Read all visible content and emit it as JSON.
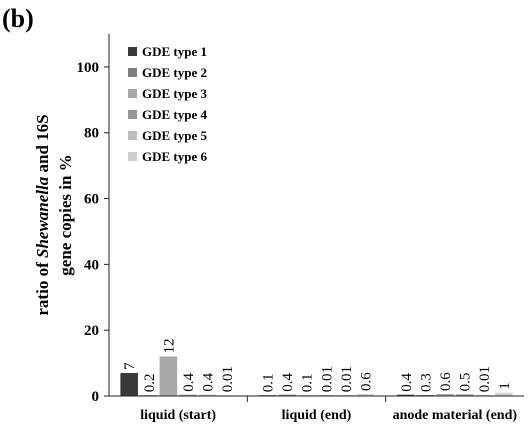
{
  "panel_label": "(b)",
  "chart_data": {
    "type": "bar",
    "ylabel_lines": [
      [
        {
          "text": "ratio of ",
          "italic": false
        },
        {
          "text": "Shewanella",
          "italic": true
        },
        {
          "text": " and 16S",
          "italic": false
        }
      ],
      [
        {
          "text": "gene copies in %",
          "italic": false
        }
      ]
    ],
    "ylim": [
      0,
      110
    ],
    "yticks": [
      0,
      20,
      40,
      60,
      80,
      100
    ],
    "categories": [
      "liquid (start)",
      "liquid (end)",
      "anode material (end)"
    ],
    "series": [
      {
        "name": "GDE type 1",
        "color": "#3a3a3a",
        "values": [
          7,
          0.1,
          0.4
        ],
        "labels": [
          "7",
          "0.1",
          "0.4"
        ]
      },
      {
        "name": "GDE type 2",
        "color": "#7e7e7e",
        "values": [
          0.2,
          0.4,
          0.3
        ],
        "labels": [
          "0.2",
          "0.4",
          "0.3"
        ]
      },
      {
        "name": "GDE type 3",
        "color": "#a9a9a9",
        "values": [
          12,
          0.1,
          0.6
        ],
        "labels": [
          "12",
          "0.1",
          "0.6"
        ]
      },
      {
        "name": "GDE type 4",
        "color": "#969696",
        "values": [
          0.4,
          0.01,
          0.5
        ],
        "labels": [
          "0.4",
          "0.01",
          "0.5"
        ]
      },
      {
        "name": "GDE type 5",
        "color": "#bdbdbd",
        "values": [
          0.4,
          0.01,
          0.01
        ],
        "labels": [
          "0.4",
          "0.01",
          "0.01"
        ]
      },
      {
        "name": "GDE type 6",
        "color": "#cfcfcf",
        "values": [
          0.01,
          0.6,
          1
        ],
        "labels": [
          "0.01",
          "0.6",
          "1"
        ]
      }
    ],
    "legend": "top-left",
    "grid": false
  }
}
